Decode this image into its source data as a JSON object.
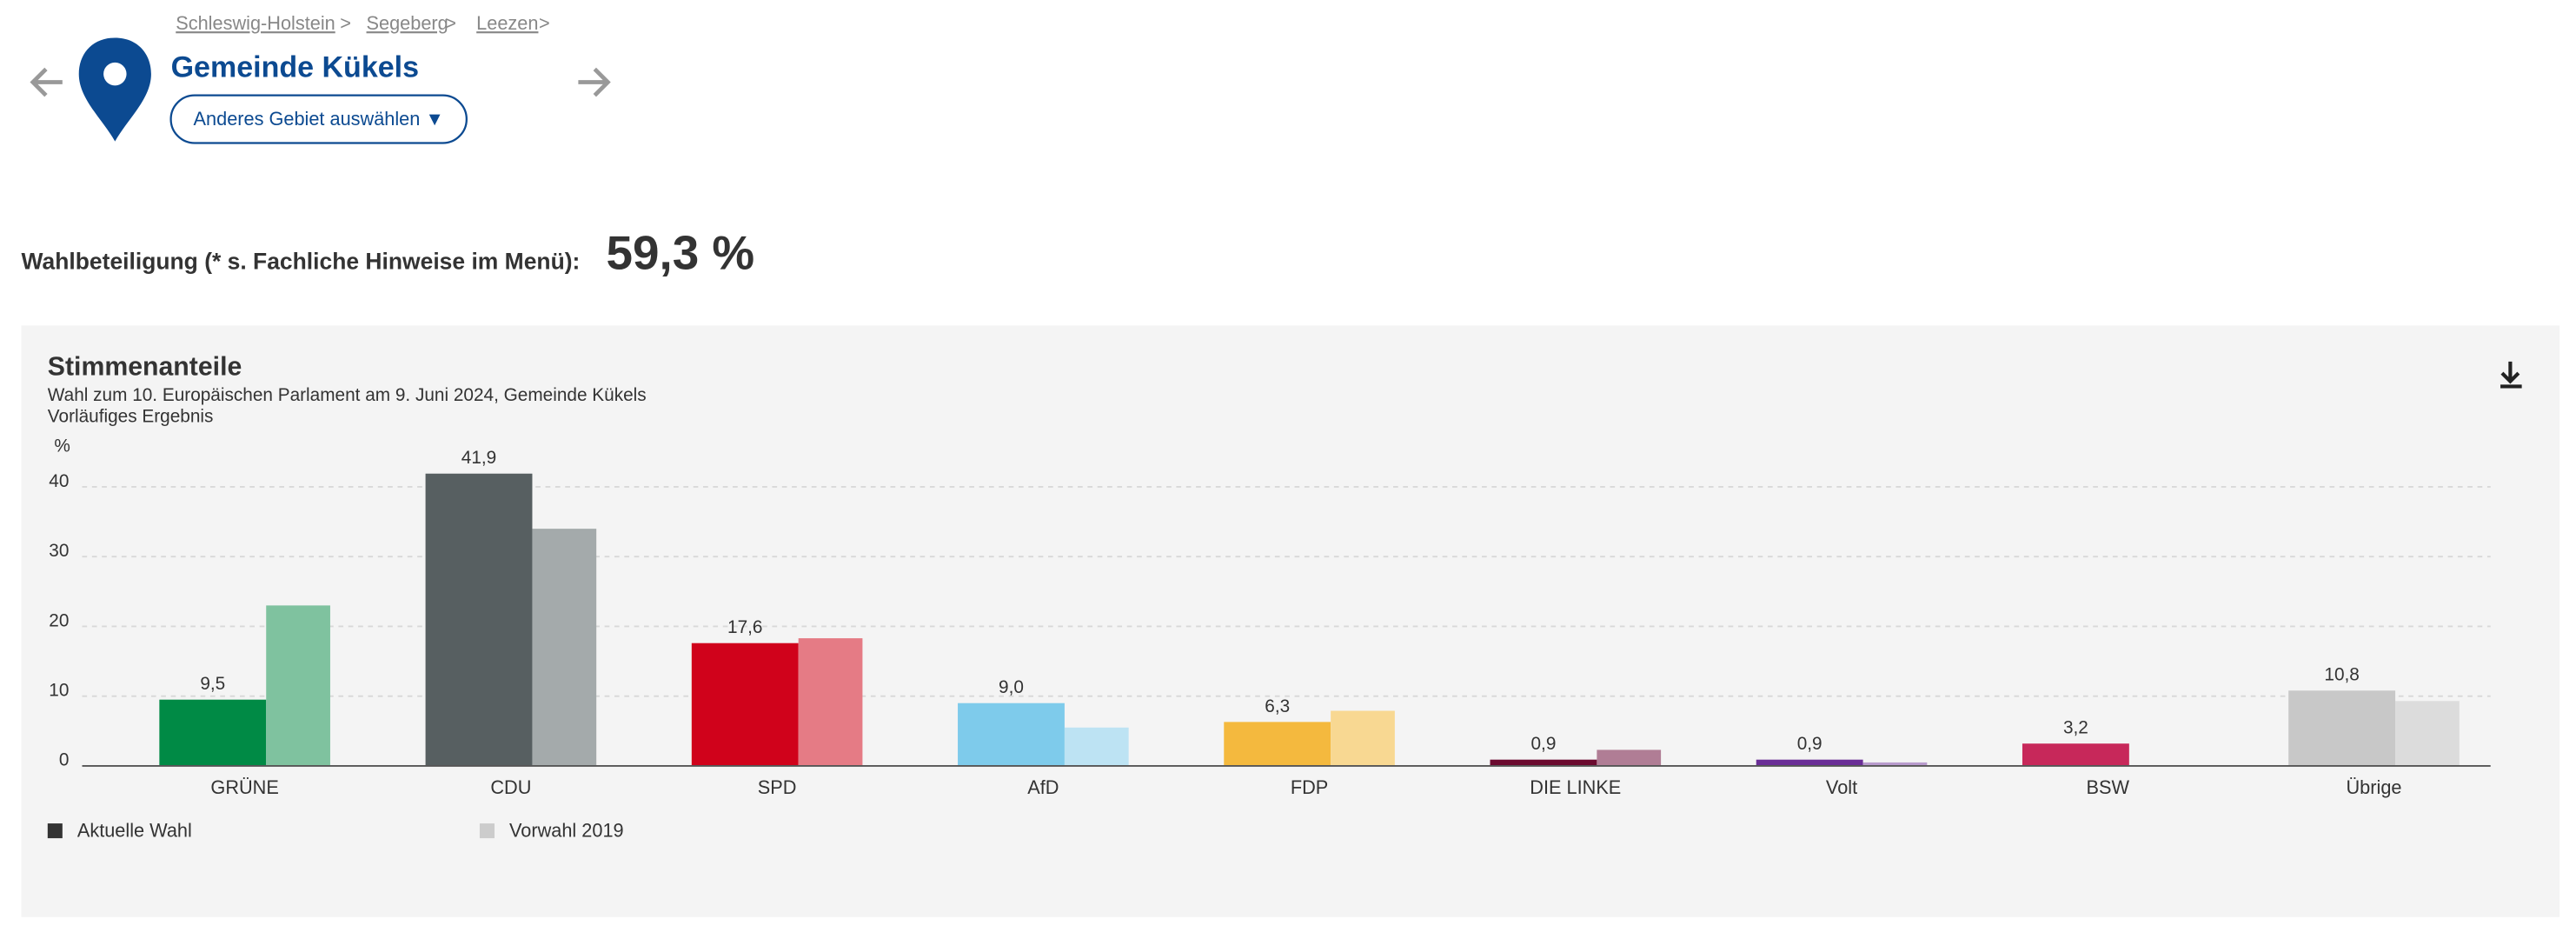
{
  "header": {
    "breadcrumb": [
      "Schleswig-Holstein",
      "Segeberg",
      "Leezen"
    ],
    "separator": ">",
    "title": "Gemeinde Kükels",
    "button": "Anderes Gebiet auswählen ▼"
  },
  "turnout": {
    "label": "Wahlbeteiligung (* s. Fachliche Hinweise im Menü):",
    "value": "59,3 %"
  },
  "chart_data": {
    "type": "bar",
    "title": "Stimmenanteile",
    "subtitle": "Wahl zum 10. Europäischen Parlament am 9. Juni 2024, Gemeinde Kükels",
    "subtitle2": "Vorläufiges Ergebnis",
    "y_label": "%",
    "categories": [
      "GRÜNE",
      "CDU",
      "SPD",
      "AfD",
      "FDP",
      "DIE LINKE",
      "Volt",
      "BSW",
      "Übrige"
    ],
    "series": [
      {
        "name": "Aktuelle Wahl",
        "color": "#333333",
        "values": [
          9.5,
          41.9,
          17.6,
          9.0,
          6.3,
          0.9,
          0.9,
          3.2,
          10.8
        ],
        "value_labels": [
          "9,5",
          "41,9",
          "17,6",
          "9,0",
          "6,3",
          "0,9",
          "0,9",
          "3,2",
          "10,8"
        ],
        "colors": [
          "#008a45",
          "#575f61",
          "#d0021b",
          "#7ecbeb",
          "#f4b93e",
          "#6b0a2f",
          "#6a2e96",
          "#c7285a",
          "#c8c8c8"
        ]
      },
      {
        "name": "Vorwahl 2019",
        "color": "#cccccc",
        "values": [
          23.0,
          34.0,
          18.3,
          5.5,
          7.9,
          2.3,
          0.5,
          null,
          9.3
        ],
        "colors": [
          "#7fc29f",
          "#a4aaab",
          "#e57b85",
          "#bde3f3",
          "#f8d892",
          "#b07d95",
          "#b89bcd",
          "#dddddd",
          "#dcdcdc"
        ]
      }
    ],
    "ylim": [
      0,
      45
    ],
    "yticks": [
      0,
      10,
      20,
      30,
      40
    ],
    "grid": true
  }
}
